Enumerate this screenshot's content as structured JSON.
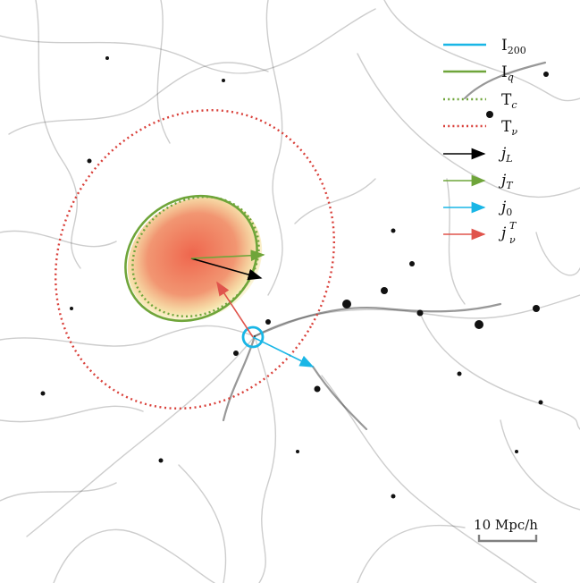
{
  "legend": {
    "items": [
      {
        "key": "i200",
        "base": "I",
        "sub": "200",
        "sup": "",
        "style": "solid",
        "color": "#19b6e6",
        "kind": "line"
      },
      {
        "key": "iq",
        "base": "I",
        "sub": "q",
        "sup": "",
        "style": "solid",
        "color": "#6fa53a",
        "kind": "line"
      },
      {
        "key": "tc",
        "base": "T",
        "sub": "c",
        "sup": "",
        "style": "dotted",
        "color": "#6fa53a",
        "kind": "line"
      },
      {
        "key": "tnu",
        "base": "T",
        "sub": "ν",
        "sup": "",
        "style": "dotted",
        "color": "#d9403a",
        "kind": "line"
      },
      {
        "key": "jl",
        "base": "j",
        "sub": "L",
        "sup": "",
        "style": "solid",
        "color": "#000000",
        "kind": "arrow"
      },
      {
        "key": "jt",
        "base": "j",
        "sub": "T",
        "sup": "",
        "style": "solid",
        "color": "#6fa53a",
        "kind": "arrow"
      },
      {
        "key": "j0",
        "base": "j",
        "sub": "0",
        "sup": "",
        "style": "solid",
        "color": "#19b6e6",
        "kind": "arrow"
      },
      {
        "key": "jnu",
        "base": "j",
        "sub": "ν",
        "sup": "T",
        "style": "solid",
        "color": "#e0544c",
        "kind": "arrow"
      }
    ]
  },
  "scale_bar": {
    "label": "10 Mpc/h"
  },
  "colors": {
    "web": "#1a1a1a",
    "halo_blob_inner": "#ee6a4a",
    "halo_blob_outer": "#f7f0a0"
  }
}
